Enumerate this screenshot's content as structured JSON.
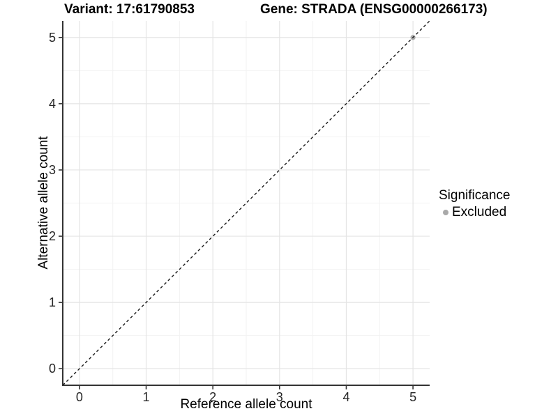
{
  "chart_data": {
    "type": "scatter",
    "titles": {
      "left": "Variant: 17:61790853",
      "right": "Gene: STRADA (ENSG00000266173)"
    },
    "xlabel": "Reference allele count",
    "ylabel": "Alternative allele count",
    "xlim": [
      -0.25,
      5.25
    ],
    "ylim": [
      -0.25,
      5.25
    ],
    "x_ticks": [
      0,
      1,
      2,
      3,
      4,
      5
    ],
    "y_ticks": [
      0,
      1,
      2,
      3,
      4,
      5
    ],
    "grid": {
      "major": true,
      "minor": true,
      "major_color": "#e4e4e4",
      "minor_color": "#f2f2f2"
    },
    "axis_color": "#333333",
    "tick_label_color": "#262626",
    "background": "#ffffff",
    "reference_line": {
      "label": "identity",
      "slope": 1,
      "intercept": 0,
      "style": "dashed",
      "color": "#1a1a1a"
    },
    "series": [
      {
        "name": "Excluded",
        "color": "#a9a9a9",
        "points": [
          [
            5,
            5
          ]
        ]
      }
    ],
    "legend": {
      "title": "Significance",
      "position": "right",
      "entries": [
        {
          "label": "Excluded",
          "color": "#a9a9a9",
          "marker": "circle"
        }
      ]
    }
  }
}
